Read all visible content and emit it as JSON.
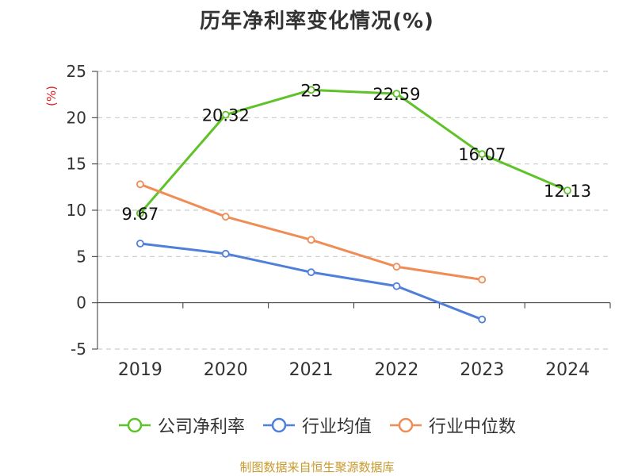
{
  "chart_data": {
    "type": "line",
    "title": "历年净利率变化情况(%)",
    "ylabel": "(%)",
    "categories": [
      "2019",
      "2020",
      "2021",
      "2022",
      "2023",
      "2024"
    ],
    "ylim": [
      -5,
      25
    ],
    "yticks": [
      25,
      20,
      15,
      10,
      5,
      0,
      -5
    ],
    "ytick_labels": [
      "25",
      "20",
      "15",
      "10",
      "5",
      "0",
      "-5"
    ],
    "grid": true,
    "legend_position": "bottom",
    "series": [
      {
        "name": "公司净利率",
        "color": "#5ec228",
        "values": [
          9.67,
          20.32,
          23,
          22.59,
          16.07,
          12.13
        ],
        "labels": [
          "9.67",
          "20.32",
          "23",
          "22.59",
          "16.07",
          "12.13"
        ]
      },
      {
        "name": "行业均值",
        "color": "#4f7fd8",
        "values": [
          6.4,
          5.3,
          3.3,
          1.8,
          -1.8,
          null
        ]
      },
      {
        "name": "行业中位数",
        "color": "#f08c55",
        "values": [
          12.8,
          9.3,
          6.8,
          3.9,
          2.5,
          null
        ]
      }
    ]
  },
  "source": "制图数据来自恒生聚源数据库"
}
